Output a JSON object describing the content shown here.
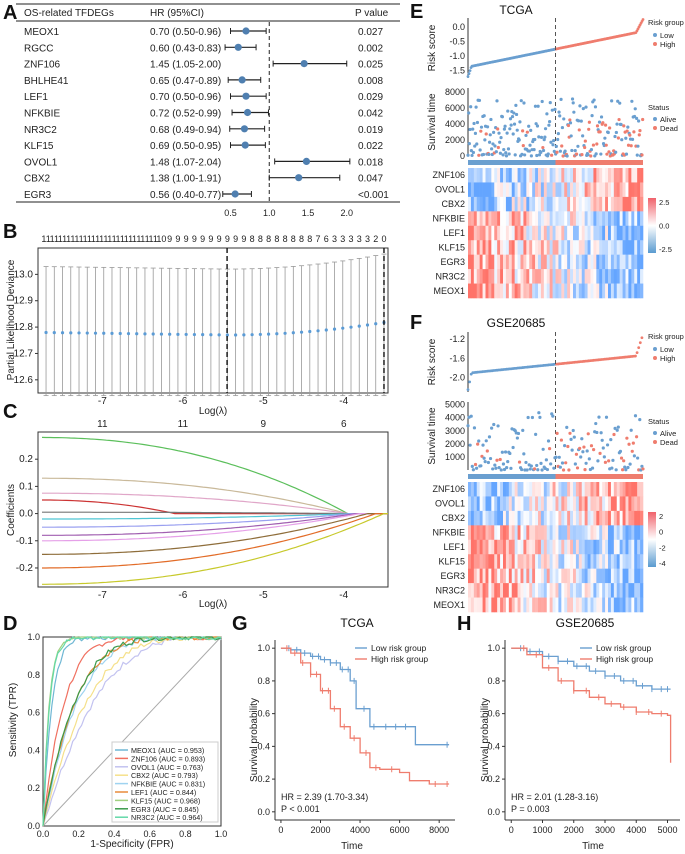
{
  "panels": {
    "A": "A",
    "B": "B",
    "C": "C",
    "D": "D",
    "E": "E",
    "F": "F",
    "G": "G",
    "H": "H"
  },
  "colors": {
    "low": "#6a9fd0",
    "high": "#ef7d6e",
    "forest": "#4f7fb0"
  },
  "chart_data": [
    {
      "type": "forest",
      "panel": "A",
      "headers": {
        "gene": "OS-related TFDEGs",
        "hr": "HR (95%CI)",
        "p": "P value"
      },
      "rows": [
        {
          "gene": "MEOX1",
          "hr_text": "0.70 (0.50-0.96)",
          "hr": 0.7,
          "lo": 0.5,
          "hi": 0.96,
          "p": "0.027"
        },
        {
          "gene": "RGCC",
          "hr_text": "0.60 (0.43-0.83)",
          "hr": 0.6,
          "lo": 0.43,
          "hi": 0.83,
          "p": "0.002"
        },
        {
          "gene": "ZNF106",
          "hr_text": "1.45 (1.05-2.00)",
          "hr": 1.45,
          "lo": 1.05,
          "hi": 2.0,
          "p": "0.025"
        },
        {
          "gene": "BHLHE41",
          "hr_text": "0.65 (0.47-0.89)",
          "hr": 0.65,
          "lo": 0.47,
          "hi": 0.89,
          "p": "0.008"
        },
        {
          "gene": "LEF1",
          "hr_text": "0.70 (0.50-0.96)",
          "hr": 0.7,
          "lo": 0.5,
          "hi": 0.96,
          "p": "0.029"
        },
        {
          "gene": "NFKBIE",
          "hr_text": "0.72 (0.52-0.99)",
          "hr": 0.72,
          "lo": 0.52,
          "hi": 0.99,
          "p": "0.042"
        },
        {
          "gene": "NR3C2",
          "hr_text": "0.68 (0.49-0.94)",
          "hr": 0.68,
          "lo": 0.49,
          "hi": 0.94,
          "p": "0.019"
        },
        {
          "gene": "KLF15",
          "hr_text": "0.69 (0.50-0.95)",
          "hr": 0.69,
          "lo": 0.5,
          "hi": 0.95,
          "p": "0.022"
        },
        {
          "gene": "OVOL1",
          "hr_text": "1.48 (1.07-2.04)",
          "hr": 1.48,
          "lo": 1.07,
          "hi": 2.04,
          "p": "0.018"
        },
        {
          "gene": "CBX2",
          "hr_text": "1.38 (1.00-1.91)",
          "hr": 1.38,
          "lo": 1.0,
          "hi": 1.91,
          "p": "0.047"
        },
        {
          "gene": "EGR3",
          "hr_text": "0.56 (0.40-0.77)",
          "hr": 0.56,
          "lo": 0.4,
          "hi": 0.77,
          "p": "<0.001"
        }
      ],
      "xticks": [
        "0.5",
        "1.0",
        "1.5",
        "2.0"
      ],
      "xrange": [
        0.3,
        2.3
      ],
      "ref_line": 1.0
    },
    {
      "type": "line_errorbar",
      "panel": "B",
      "xlabel": "Log(λ)",
      "ylabel": "Partial Likelihood Deviance",
      "top_ticks": [
        "11",
        "11",
        "11",
        "11",
        "11",
        "11",
        "11",
        "11",
        "11",
        "11",
        "11",
        "11",
        "11",
        "11",
        "10",
        "9",
        "9",
        "9",
        "9",
        "9",
        "9",
        "9",
        "9",
        "9",
        "9",
        "8",
        "8",
        "8",
        "8",
        "8",
        "8",
        "8",
        "8",
        "7",
        "6",
        "3",
        "3",
        "3",
        "3",
        "3",
        "2",
        "0"
      ],
      "xticks": [
        -7,
        -6,
        -5,
        -4
      ],
      "yticks": [
        12.6,
        12.7,
        12.8,
        12.9,
        13.0
      ],
      "xrange": [
        -7.8,
        -3.45
      ],
      "yrange": [
        12.55,
        13.1
      ],
      "lambda_min": -5.45,
      "lambda_1se": -3.5,
      "mean_start": 12.78,
      "mean_min": 12.77,
      "mean_end": 12.82,
      "err_lo": 12.54,
      "err_hi_start": 13.03,
      "err_hi_min": 13.02,
      "err_hi_end": 13.08
    },
    {
      "type": "line",
      "panel": "C",
      "xlabel": "Log(λ)",
      "ylabel": "Coefficients",
      "top_ticks": [
        "11",
        "11",
        "9",
        "6"
      ],
      "top_tick_x": [
        -7,
        -6,
        -5,
        -4
      ],
      "xticks": [
        -7,
        -6,
        -5,
        -4
      ],
      "yticks": [
        -0.2,
        -0.1,
        0.0,
        0.1,
        0.2
      ],
      "xrange": [
        -7.8,
        -3.45
      ],
      "yrange": [
        -0.27,
        0.3
      ],
      "series": [
        {
          "color": "#5bbf5b",
          "start": 0.28,
          "fade": -3.95
        },
        {
          "color": "#c9b99a",
          "start": 0.13,
          "fade": -3.95
        },
        {
          "color": "#e0a6c8",
          "start": 0.075,
          "fade": -3.95
        },
        {
          "color": "#cc3333",
          "start": 0.05,
          "fade": -6.1
        },
        {
          "color": "#777777",
          "start": 0.005,
          "fade": -3.95
        },
        {
          "color": "#4fc5d3",
          "start": -0.02,
          "fade": -3.9
        },
        {
          "color": "#9aa0f0",
          "start": -0.05,
          "fade": -3.9
        },
        {
          "color": "#a05fb0",
          "start": -0.08,
          "fade": -3.85
        },
        {
          "color": "#e5a0e8",
          "start": -0.1,
          "fade": -3.8
        },
        {
          "color": "#8e6d3a",
          "start": -0.15,
          "fade": -3.7
        },
        {
          "color": "#e26c28",
          "start": -0.2,
          "fade": -3.6
        },
        {
          "color": "#c7c92b",
          "start": -0.26,
          "fade": -3.5
        }
      ]
    },
    {
      "type": "roc",
      "panel": "D",
      "xlabel": "1-Specificity (FPR)",
      "ylabel": "Sensitivity (TPR)",
      "ticks": [
        "0.0",
        "0.2",
        "0.4",
        "0.6",
        "0.8",
        "1.0"
      ],
      "series": [
        {
          "name": "MEOX1 (AUC = 0.953)",
          "color": "#6fb7d4",
          "auc": 0.953
        },
        {
          "name": "ZNF106 (AUC = 0.893)",
          "color": "#f07060",
          "auc": 0.893
        },
        {
          "name": "OVOL1 (AUC = 0.763)",
          "color": "#c2c2f0",
          "auc": 0.763
        },
        {
          "name": "CBX2 (AUC = 0.793)",
          "color": "#f5e08a",
          "auc": 0.793
        },
        {
          "name": "NFKBIE (AUC = 0.831)",
          "color": "#9fd3f0",
          "auc": 0.831
        },
        {
          "name": "LEF1 (AUC = 0.844)",
          "color": "#e88b3a",
          "auc": 0.844
        },
        {
          "name": "KLF15 (AUC = 0.968)",
          "color": "#a0d080",
          "auc": 0.968
        },
        {
          "name": "EGR3 (AUC = 0.845)",
          "color": "#3a9a4a",
          "auc": 0.845
        },
        {
          "name": "NR3C2 (AUC = 0.964)",
          "color": "#63d9a8",
          "auc": 0.964
        }
      ]
    },
    {
      "type": "risk_plot",
      "panel": "E",
      "title": "TCGA",
      "ylabel_score": "Risk score",
      "ylabel_time": "Survival time",
      "score_ticks": [
        "0.0",
        "-0.5",
        "-1.0",
        "-1.5"
      ],
      "score_range": [
        -1.75,
        0.3
      ],
      "score_min": -1.7,
      "score_max": 0.25,
      "time_ticks": [
        "8000",
        "6000",
        "4000",
        "2000",
        "0"
      ],
      "time_range": [
        0,
        8500
      ],
      "time_max": 8500,
      "n": 520,
      "cut_fraction": 0.5,
      "risk_legend": {
        "title": "Risk group",
        "low": "Low",
        "high": "High"
      },
      "status_legend": {
        "title": "Status",
        "alive": "Alive",
        "dead": "Dead"
      },
      "genes": [
        "ZNF106",
        "OVOL1",
        "CBX2",
        "NFKBIE",
        "LEF1",
        "KLF15",
        "EGR3",
        "NR3C2",
        "MEOX1"
      ],
      "gene_direction": [
        1,
        1,
        1,
        -1,
        -1,
        -1,
        -1,
        -1,
        -1
      ],
      "color_ticks": [
        "2.5",
        "0.0",
        "-2.5"
      ]
    },
    {
      "type": "risk_plot",
      "panel": "F",
      "title": "GSE20685",
      "ylabel_score": "Risk score",
      "ylabel_time": "Survival time",
      "score_ticks": [
        "-1.2",
        "-1.6",
        "-2.0"
      ],
      "score_range": [
        -2.3,
        -1.05
      ],
      "score_min": -2.25,
      "score_max": -1.1,
      "time_ticks": [
        "5000",
        "4000",
        "3000",
        "2000",
        "1000"
      ],
      "time_range": [
        0,
        5200
      ],
      "time_max": 5200,
      "n": 327,
      "cut_fraction": 0.5,
      "risk_legend": {
        "title": "Risk group",
        "low": "Low",
        "high": "High"
      },
      "status_legend": {
        "title": "Status",
        "alive": "Alive",
        "dead": "Dead"
      },
      "genes": [
        "ZNF106",
        "OVOL1",
        "CBX2",
        "NFKBIE",
        "LEF1",
        "KLF15",
        "EGR3",
        "NR3C2",
        "MEOX1"
      ],
      "gene_direction": [
        1,
        1,
        1,
        -1,
        -1,
        -1,
        -1,
        -1,
        -1
      ],
      "color_ticks": [
        "2",
        "0",
        "-2",
        "-4"
      ]
    },
    {
      "type": "km",
      "panel": "G",
      "title": "TCGA",
      "xlabel": "Time",
      "ylabel": "Survival probability",
      "xticks": [
        0,
        2000,
        4000,
        6000,
        8000
      ],
      "yticks": [
        "0.0",
        "0.2",
        "0.4",
        "0.6",
        "0.8",
        "1.0"
      ],
      "xrange": [
        -300,
        8800
      ],
      "legend": {
        "low": "Low risk group",
        "high": "High risk group"
      },
      "hr_text": "HR = 2.39 (1.70-3.34)",
      "p_text": "P < 0.001",
      "low_curve": [
        [
          0,
          1.0
        ],
        [
          500,
          0.99
        ],
        [
          1000,
          0.97
        ],
        [
          1500,
          0.95
        ],
        [
          2000,
          0.93
        ],
        [
          2500,
          0.91
        ],
        [
          3000,
          0.87
        ],
        [
          3500,
          0.8
        ],
        [
          3800,
          0.63
        ],
        [
          4500,
          0.52
        ],
        [
          5000,
          0.52
        ],
        [
          6500,
          0.52
        ],
        [
          6800,
          0.41
        ],
        [
          8500,
          0.41
        ]
      ],
      "high_curve": [
        [
          0,
          1.0
        ],
        [
          500,
          0.97
        ],
        [
          1000,
          0.91
        ],
        [
          1500,
          0.84
        ],
        [
          2000,
          0.74
        ],
        [
          2500,
          0.63
        ],
        [
          3000,
          0.52
        ],
        [
          3500,
          0.45
        ],
        [
          4000,
          0.36
        ],
        [
          4500,
          0.27
        ],
        [
          5000,
          0.26
        ],
        [
          6000,
          0.24
        ],
        [
          6500,
          0.19
        ],
        [
          7500,
          0.17
        ],
        [
          8500,
          0.17
        ]
      ],
      "low_censors": [
        400,
        800,
        1200,
        1600,
        1900,
        2200,
        2500,
        2800,
        3100,
        3400,
        3700,
        4200,
        4700,
        5300,
        5800,
        6300,
        8400
      ],
      "high_censors": [
        300,
        700,
        1100,
        1500,
        1800,
        2100,
        2400,
        2700,
        3200,
        3700,
        4300,
        4800,
        5600,
        7800,
        8400
      ]
    },
    {
      "type": "km",
      "panel": "H",
      "title": "GSE20685",
      "xlabel": "Time",
      "ylabel": "Survival probability",
      "xticks": [
        0,
        1000,
        2000,
        3000,
        4000,
        5000
      ],
      "yticks": [
        "0.0",
        "0.2",
        "0.4",
        "0.6",
        "0.8",
        "1.0"
      ],
      "xrange": [
        -200,
        5400
      ],
      "legend": {
        "low": "Low risk group",
        "high": "High risk group"
      },
      "hr_text": "HR = 2.01 (1.28-3.16)",
      "p_text": "P = 0.003",
      "low_curve": [
        [
          0,
          1.0
        ],
        [
          500,
          0.98
        ],
        [
          1000,
          0.95
        ],
        [
          1500,
          0.92
        ],
        [
          2000,
          0.89
        ],
        [
          2500,
          0.86
        ],
        [
          3000,
          0.83
        ],
        [
          3500,
          0.8
        ],
        [
          4000,
          0.77
        ],
        [
          4500,
          0.75
        ],
        [
          5100,
          0.75
        ]
      ],
      "high_curve": [
        [
          0,
          1.0
        ],
        [
          500,
          0.96
        ],
        [
          1000,
          0.88
        ],
        [
          1500,
          0.8
        ],
        [
          2000,
          0.74
        ],
        [
          2500,
          0.7
        ],
        [
          3000,
          0.66
        ],
        [
          3500,
          0.64
        ],
        [
          4000,
          0.61
        ],
        [
          4500,
          0.6
        ],
        [
          5000,
          0.59
        ],
        [
          5100,
          0.3
        ]
      ],
      "low_censors": [
        300,
        600,
        900,
        1200,
        1500,
        1800,
        2100,
        2400,
        2700,
        3000,
        3300,
        3600,
        3900,
        4200,
        4500,
        4800,
        5000
      ],
      "high_censors": [
        400,
        800,
        1200,
        1600,
        2000,
        2400,
        2800,
        3200,
        3600,
        4000,
        4400,
        4800
      ]
    }
  ]
}
